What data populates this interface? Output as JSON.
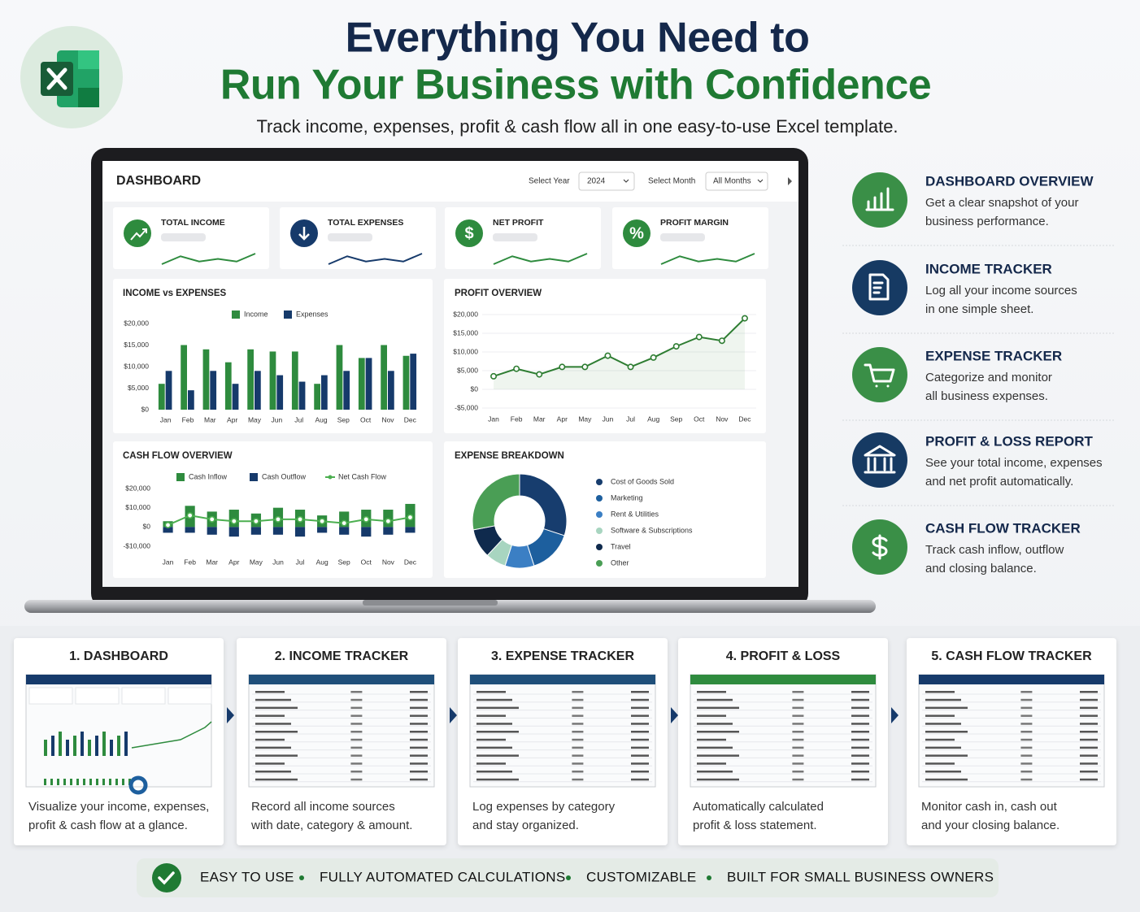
{
  "header": {
    "title_line1": "Everything You Need to",
    "title_line2": "Run Your Business with Confidence",
    "subtitle": "Track income, expenses, profit & cash flow all in one easy-to-use Excel template."
  },
  "dashboard": {
    "title": "DASHBOARD",
    "year_label": "Select Year",
    "year": "2024",
    "month_label": "Select Month",
    "month": "All Months",
    "kpis": [
      {
        "title": "TOTAL INCOME",
        "color": "#2e8b3e",
        "trend": [
          2,
          5,
          3,
          4,
          3,
          6
        ]
      },
      {
        "title": "TOTAL EXPENSES",
        "color": "#163a6b",
        "trend": [
          2,
          5,
          3,
          4,
          3,
          6
        ]
      },
      {
        "title": "NET PROFIT",
        "icon": "$",
        "color": "#2e8b3e",
        "trend": [
          2,
          5,
          3,
          4,
          3,
          6
        ]
      },
      {
        "title": "PROFIT MARGIN",
        "icon": "%",
        "color": "#2e8b3e",
        "trend": [
          2,
          5,
          3,
          4,
          3,
          6
        ]
      }
    ]
  },
  "chart_data": [
    {
      "type": "bar",
      "title": "INCOME vs EXPENSES",
      "categories": [
        "Jan",
        "Feb",
        "Mar",
        "Apr",
        "May",
        "Jun",
        "Jul",
        "Aug",
        "Sep",
        "Oct",
        "Nov",
        "Dec"
      ],
      "series": [
        {
          "name": "Income",
          "color": "#2e8b3e",
          "values": [
            6000,
            15000,
            14000,
            11000,
            14000,
            13500,
            13500,
            6000,
            15000,
            12000,
            15000,
            12500
          ]
        },
        {
          "name": "Expenses",
          "color": "#163a6b",
          "values": [
            9000,
            4500,
            9000,
            6000,
            9000,
            8000,
            6500,
            8000,
            9000,
            12000,
            9000,
            13000
          ]
        }
      ],
      "ylim": [
        0,
        20000
      ],
      "yticks": [
        {
          "value": 0,
          "label": "$0"
        },
        {
          "value": 5000,
          "label": "$5,000"
        },
        {
          "value": 10000,
          "label": "$10,000"
        },
        {
          "value": 15000,
          "label": "$15,000"
        },
        {
          "value": 20000,
          "label": "$20,000"
        }
      ],
      "grid": false
    },
    {
      "type": "line",
      "title": "PROFIT OVERVIEW",
      "categories": [
        "Jan",
        "Feb",
        "Mar",
        "Apr",
        "May",
        "Jun",
        "Jul",
        "Aug",
        "Sep",
        "Oct",
        "Nov",
        "Dec"
      ],
      "values": [
        3500,
        5500,
        4000,
        6000,
        6000,
        9000,
        6000,
        8500,
        11500,
        14000,
        13000,
        19000
      ],
      "color": "#2e7d32",
      "ylim": [
        -5000,
        20000
      ],
      "yticks": [
        {
          "value": -5000,
          "label": "-$5,000"
        },
        {
          "value": 0,
          "label": "$0"
        },
        {
          "value": 5000,
          "label": "$5,000"
        },
        {
          "value": 10000,
          "label": "$10,000"
        },
        {
          "value": 15000,
          "label": "$15,000"
        },
        {
          "value": 20000,
          "label": "$20,000"
        }
      ],
      "grid": true
    },
    {
      "type": "bar",
      "title": "CASH FLOW OVERVIEW",
      "categories": [
        "Jan",
        "Feb",
        "Mar",
        "Apr",
        "May",
        "Jun",
        "Jul",
        "Aug",
        "Sep",
        "Oct",
        "Nov",
        "Dec"
      ],
      "stacked": true,
      "series": [
        {
          "name": "Cash Inflow",
          "color": "#2e8b3e",
          "values": [
            3000,
            11000,
            8000,
            9000,
            7000,
            10000,
            9000,
            6000,
            8000,
            9000,
            9000,
            12000
          ]
        },
        {
          "name": "Cash Outflow",
          "color": "#163a6b",
          "values": [
            -3000,
            -3000,
            -4000,
            -5000,
            -4000,
            -4000,
            -5000,
            -3000,
            -4000,
            -5000,
            -4000,
            -3000
          ]
        },
        {
          "name": "Net Cash Flow",
          "type": "line",
          "color": "#4caf50",
          "values": [
            1000,
            6000,
            4000,
            3000,
            3000,
            4000,
            4000,
            3000,
            2000,
            4000,
            3000,
            5000
          ]
        }
      ],
      "ylim": [
        -10000,
        20000
      ],
      "yticks": [
        {
          "value": -10000,
          "label": "-$10,000"
        },
        {
          "value": 0,
          "label": "$0"
        },
        {
          "value": 10000,
          "label": "$10,000"
        },
        {
          "value": 20000,
          "label": "$20,000"
        }
      ],
      "grid": false
    },
    {
      "type": "pie",
      "title": "EXPENSE BREAKDOWN",
      "donut": true,
      "categories": [
        "Cost of Goods Sold",
        "Marketing",
        "Rent & Utilities",
        "Software & Subscriptions",
        "Travel",
        "Other"
      ],
      "values": [
        30,
        15,
        10,
        7,
        10,
        28
      ],
      "colors": [
        "#173d6e",
        "#1d5f9e",
        "#3b7fc4",
        "#a8d5c0",
        "#0f2a4d",
        "#4a9e55"
      ]
    }
  ],
  "features": [
    {
      "title": "DASHBOARD OVERVIEW",
      "description": [
        "Get a clear snapshot of your",
        "business performance."
      ]
    },
    {
      "title": "INCOME TRACKER",
      "description": [
        "Log all your income sources",
        "in one simple sheet."
      ]
    },
    {
      "title": "EXPENSE TRACKER",
      "description": [
        "Categorize and monitor",
        "all business expenses."
      ]
    },
    {
      "title": "PROFIT & LOSS REPORT",
      "description": [
        "See your total income, expenses",
        "and net profit automatically."
      ]
    },
    {
      "title": "CASH FLOW TRACKER",
      "description": [
        "Track cash inflow, outflow",
        "and closing balance."
      ]
    }
  ],
  "steps": [
    {
      "title": "1. DASHBOARD",
      "description": [
        "Visualize your income, expenses,",
        "profit & cash flow at a glance."
      ]
    },
    {
      "title": "2. INCOME TRACKER",
      "description": [
        "Record all income sources",
        "with date, category & amount."
      ]
    },
    {
      "title": "3. EXPENSE TRACKER",
      "description": [
        "Log expenses by category",
        "and stay organized."
      ]
    },
    {
      "title": "4. PROFIT & LOSS",
      "description": [
        "Automatically calculated",
        "profit & loss statement."
      ]
    },
    {
      "title": "5. CASH FLOW TRACKER",
      "description": [
        "Monitor cash in, cash out",
        "and your closing balance."
      ]
    }
  ],
  "badges": [
    "EASY TO USE",
    "FULLY AUTOMATED CALCULATIONS",
    "CUSTOMIZABLE",
    "BUILT FOR SMALL BUSINESS OWNERS"
  ]
}
